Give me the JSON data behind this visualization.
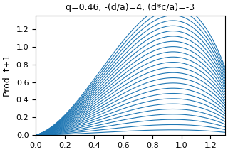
{
  "title": "q=0.46, -(d/a)=4, (d*c/a)=-3",
  "ylabel": "Prod. t+1",
  "q": 0.46,
  "neg_d_over_a": 4,
  "d_c_over_a": -3,
  "x_min": 0.0,
  "x_max": 1.3,
  "y_min": 0.0,
  "y_max": 1.35,
  "n_curves": 25,
  "line_color": "#1f77b4",
  "line_width": 0.8,
  "figsize": [
    3.2,
    2.14
  ],
  "dpi": 100,
  "scale_min": 0.04,
  "scale_max": 1.0
}
